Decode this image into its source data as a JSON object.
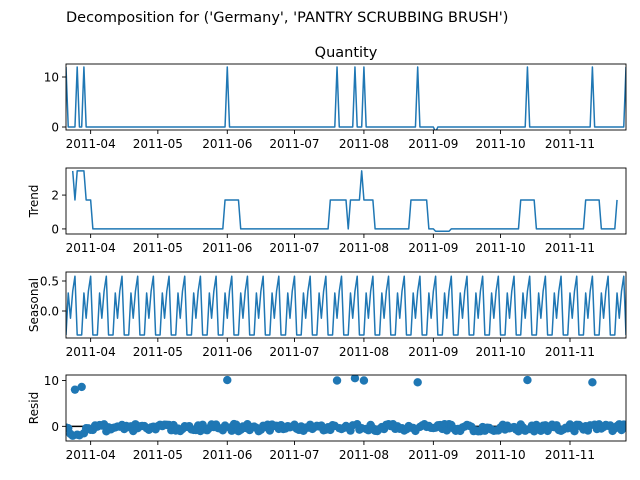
{
  "chart_data": {
    "type": "line",
    "title": "Decomposition for ('Germany', 'PANTRY SCRUBBING BRUSH')",
    "x_tick_labels": [
      "2011-04",
      "2011-05",
      "2011-06",
      "2011-07",
      "2011-08",
      "2011-09",
      "2011-10",
      "2011-11"
    ],
    "x_tick_dates": [
      "2011-04-01",
      "2011-05-01",
      "2011-06-01",
      "2011-07-01",
      "2011-08-01",
      "2011-09-01",
      "2011-10-01",
      "2011-11-01"
    ],
    "x_range": [
      "2011-03-21",
      "2011-11-26"
    ],
    "color": "#1f77b4",
    "panels": [
      {
        "id": "observed",
        "title": "Quantity",
        "ylabel": "",
        "type": "line",
        "ylim": [
          -0.6,
          12.6
        ],
        "yticks": [
          0,
          10
        ],
        "baseline": 0,
        "spikes": [
          [
            "2011-03-21",
            12
          ],
          [
            "2011-03-26",
            12
          ],
          [
            "2011-03-29",
            12
          ],
          [
            "2011-06-01",
            12
          ],
          [
            "2011-07-20",
            12
          ],
          [
            "2011-07-28",
            12
          ],
          [
            "2011-08-01",
            12
          ],
          [
            "2011-08-25",
            12
          ],
          [
            "2011-09-02",
            -1
          ],
          [
            "2011-10-13",
            12
          ],
          [
            "2011-11-11",
            12
          ],
          [
            "2011-11-26",
            12
          ]
        ]
      },
      {
        "id": "trend",
        "title": "",
        "ylabel": "Trend",
        "type": "line",
        "ylim": [
          -0.3,
          3.6
        ],
        "yticks": [
          0,
          2
        ],
        "points": [
          [
            "2011-03-24",
            3.43
          ],
          [
            "2011-03-25",
            1.71
          ],
          [
            "2011-03-26",
            3.43
          ],
          [
            "2011-03-29",
            3.43
          ],
          [
            "2011-03-30",
            1.71
          ],
          [
            "2011-04-01",
            1.71
          ],
          [
            "2011-04-02",
            0
          ],
          [
            "2011-05-30",
            0
          ],
          [
            "2011-05-31",
            1.71
          ],
          [
            "2011-06-06",
            1.71
          ],
          [
            "2011-06-07",
            0
          ],
          [
            "2011-07-16",
            0
          ],
          [
            "2011-07-17",
            1.71
          ],
          [
            "2011-07-24",
            1.71
          ],
          [
            "2011-07-25",
            0
          ],
          [
            "2011-07-26",
            1.71
          ],
          [
            "2011-07-30",
            1.71
          ],
          [
            "2011-07-31",
            3.43
          ],
          [
            "2011-08-01",
            1.71
          ],
          [
            "2011-08-05",
            1.71
          ],
          [
            "2011-08-06",
            0
          ],
          [
            "2011-08-21",
            0
          ],
          [
            "2011-08-22",
            1.71
          ],
          [
            "2011-08-29",
            1.71
          ],
          [
            "2011-08-30",
            0
          ],
          [
            "2011-09-01",
            0
          ],
          [
            "2011-09-02",
            -0.14
          ],
          [
            "2011-09-08",
            -0.14
          ],
          [
            "2011-09-09",
            0
          ],
          [
            "2011-10-09",
            0
          ],
          [
            "2011-10-10",
            1.71
          ],
          [
            "2011-10-16",
            1.71
          ],
          [
            "2011-10-17",
            0
          ],
          [
            "2011-11-07",
            0
          ],
          [
            "2011-11-08",
            1.71
          ],
          [
            "2011-11-14",
            1.71
          ],
          [
            "2011-11-15",
            0
          ],
          [
            "2011-11-21",
            0
          ],
          [
            "2011-11-22",
            1.71
          ]
        ]
      },
      {
        "id": "seasonal",
        "title": "",
        "ylabel": "Seasonal",
        "type": "line",
        "ylim": [
          -0.45,
          0.65
        ],
        "yticks": [
          0.0,
          0.5
        ],
        "ytick_labels": [
          "0.0",
          "0.5"
        ],
        "period_days": 7,
        "pattern": [
          -0.4,
          0.3,
          -0.12,
          0.33,
          0.58,
          -0.4,
          -0.4
        ]
      },
      {
        "id": "resid",
        "title": "",
        "ylabel": "Resid",
        "type": "scatter",
        "ylim": [
          -3.2,
          11.2
        ],
        "yticks": [
          0,
          10
        ],
        "outliers": [
          [
            "2011-03-25",
            8.0
          ],
          [
            "2011-03-28",
            8.6
          ],
          [
            "2011-06-01",
            10.1
          ],
          [
            "2011-07-20",
            10.0
          ],
          [
            "2011-07-28",
            10.5
          ],
          [
            "2011-08-01",
            10.0
          ],
          [
            "2011-08-25",
            9.6
          ],
          [
            "2011-10-13",
            10.1
          ],
          [
            "2011-11-11",
            9.6
          ]
        ]
      }
    ]
  }
}
